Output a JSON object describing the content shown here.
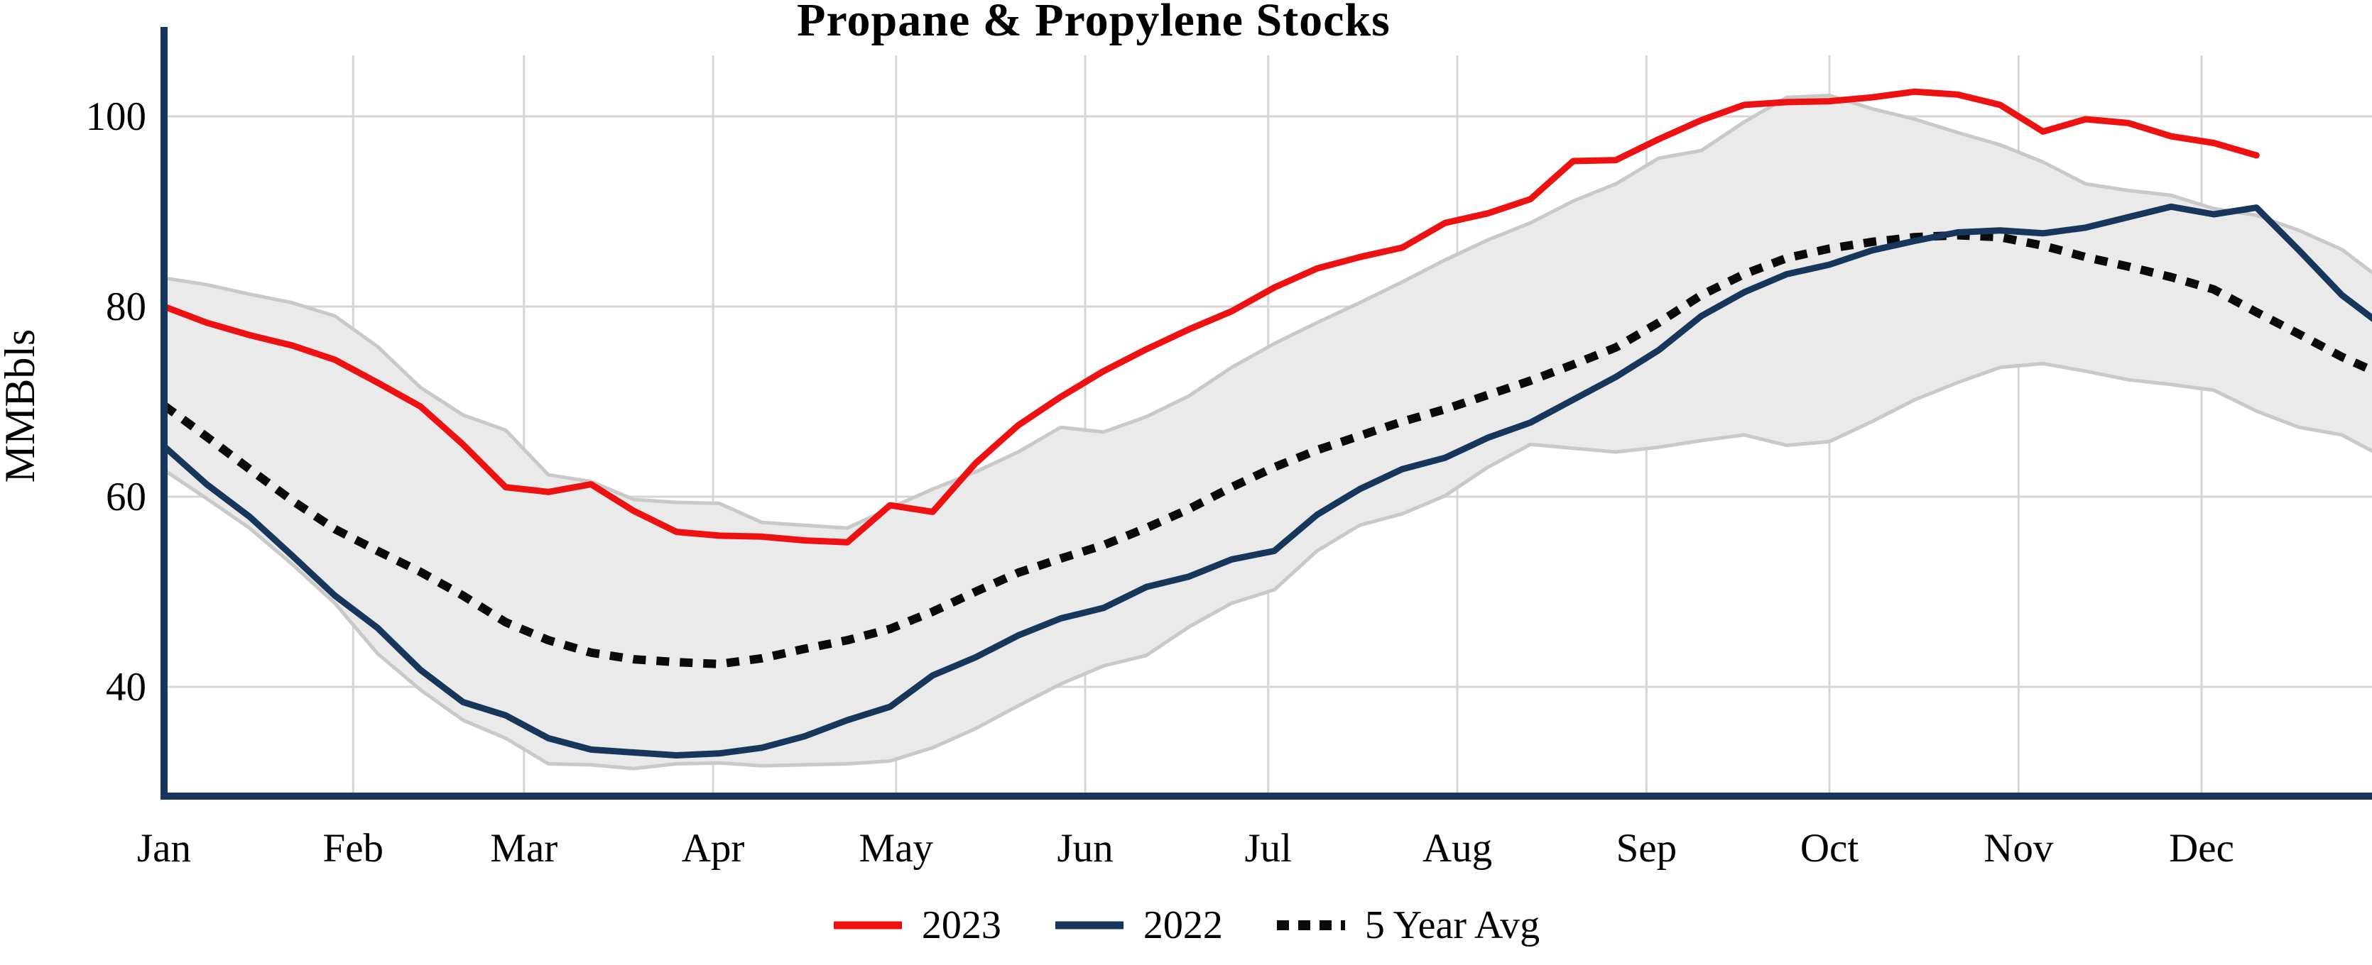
{
  "chart_data": {
    "type": "line",
    "title": "Propane & Propylene Stocks",
    "ylabel": "MMBbls",
    "x_tick_labels": [
      "Jan",
      "Feb",
      "Mar",
      "Apr",
      "May",
      "Jun",
      "Jul",
      "Aug",
      "Sep",
      "Oct",
      "Nov",
      "Dec"
    ],
    "y_ticks": [
      40,
      60,
      80,
      100
    ],
    "ylim": [
      28.5,
      109
    ],
    "x_unit": "weekly points, Jan 1 through year end",
    "grid": true,
    "legend_position": "bottom center",
    "colors": {
      "red_2023": "#ee1111",
      "navy_2022": "#16365c",
      "avg_dotted": "#0a0a0a",
      "band_fill": "#eaeaea",
      "band_edge": "#c9c9c9",
      "gridline": "#d6d6d6",
      "axis_spine": "#16365c",
      "text": "#000000"
    },
    "band": {
      "name": "5 year min-max range",
      "upper": [
        83.0,
        82.3,
        81.3,
        80.4,
        79.0,
        75.8,
        71.5,
        68.6,
        67.0,
        62.3,
        61.6,
        59.7,
        59.4,
        59.3,
        57.3,
        57.0,
        56.7,
        58.8,
        60.8,
        62.6,
        64.7,
        67.3,
        66.8,
        68.4,
        70.6,
        73.6,
        76.1,
        78.3,
        80.4,
        82.6,
        84.9,
        87.0,
        88.8,
        91.1,
        92.9,
        95.6,
        96.4,
        99.4,
        102.0,
        102.2,
        100.8,
        99.7,
        98.3,
        97.0,
        95.2,
        92.9,
        92.2,
        91.7,
        90.3,
        89.6,
        88.0,
        86.0,
        82.6
      ],
      "lower": [
        62.8,
        59.8,
        56.7,
        52.9,
        48.8,
        43.5,
        39.7,
        36.5,
        34.6,
        31.9,
        31.8,
        31.4,
        31.9,
        32.0,
        31.7,
        31.8,
        31.9,
        32.2,
        33.6,
        35.6,
        38.0,
        40.3,
        42.2,
        43.3,
        46.3,
        48.8,
        50.2,
        54.3,
        57.0,
        58.2,
        60.1,
        63.1,
        65.5,
        65.1,
        64.7,
        65.2,
        65.9,
        66.5,
        65.4,
        65.8,
        67.9,
        70.2,
        72.0,
        73.6,
        74.0,
        73.2,
        72.3,
        71.8,
        71.2,
        69.0,
        67.3,
        66.5,
        64.1
      ]
    },
    "series": [
      {
        "name": "2023",
        "style": "solid",
        "color_key": "red_2023",
        "values": [
          80.0,
          78.3,
          77.0,
          75.9,
          74.4,
          72.0,
          69.5,
          65.5,
          61.0,
          60.5,
          61.3,
          58.5,
          56.3,
          55.9,
          55.8,
          55.4,
          55.2,
          59.1,
          58.4,
          63.5,
          67.5,
          70.5,
          73.2,
          75.5,
          77.6,
          79.5,
          82.0,
          84.0,
          85.2,
          86.2,
          88.8,
          89.8,
          91.3,
          95.3,
          95.4,
          97.6,
          99.6,
          101.2,
          101.5,
          101.6,
          102.0,
          102.6,
          102.3,
          101.2,
          98.4,
          99.7,
          99.3,
          97.9,
          97.2,
          95.9
        ]
      },
      {
        "name": "2022",
        "style": "solid",
        "color_key": "navy_2022",
        "values": [
          65.3,
          61.3,
          57.9,
          53.8,
          49.6,
          46.2,
          41.8,
          38.4,
          37.0,
          34.6,
          33.4,
          33.1,
          32.8,
          33.0,
          33.6,
          34.8,
          36.5,
          37.9,
          41.2,
          43.1,
          45.4,
          47.2,
          48.3,
          50.5,
          51.6,
          53.4,
          54.3,
          58.1,
          60.8,
          62.9,
          64.1,
          66.2,
          67.8,
          70.2,
          72.6,
          75.4,
          79.0,
          81.5,
          83.4,
          84.4,
          85.9,
          86.9,
          87.8,
          88.0,
          87.7,
          88.3,
          89.4,
          90.5,
          89.7,
          90.4,
          85.9,
          81.2,
          77.8
        ]
      },
      {
        "name": "5 Year Avg",
        "style": "dotted",
        "color_key": "avg_dotted",
        "values": [
          69.6,
          66.3,
          62.9,
          59.6,
          56.6,
          54.3,
          52.1,
          49.6,
          46.8,
          44.9,
          43.6,
          42.9,
          42.6,
          42.4,
          43.0,
          44.0,
          44.9,
          46.1,
          47.9,
          50.0,
          52.0,
          53.5,
          54.9,
          56.7,
          58.7,
          61.0,
          63.1,
          64.9,
          66.4,
          67.9,
          69.2,
          70.7,
          72.2,
          73.9,
          75.7,
          78.3,
          81.2,
          83.4,
          85.1,
          86.1,
          86.8,
          87.3,
          87.5,
          87.3,
          86.4,
          85.2,
          84.2,
          83.1,
          81.8,
          79.4,
          77.1,
          74.7,
          72.7
        ]
      }
    ],
    "legend": [
      {
        "label": "2023",
        "style": "solid",
        "color_key": "red_2023"
      },
      {
        "label": "2022",
        "style": "solid",
        "color_key": "navy_2022"
      },
      {
        "label": "5 Year Avg",
        "style": "dotted",
        "color_key": "avg_dotted"
      }
    ]
  }
}
